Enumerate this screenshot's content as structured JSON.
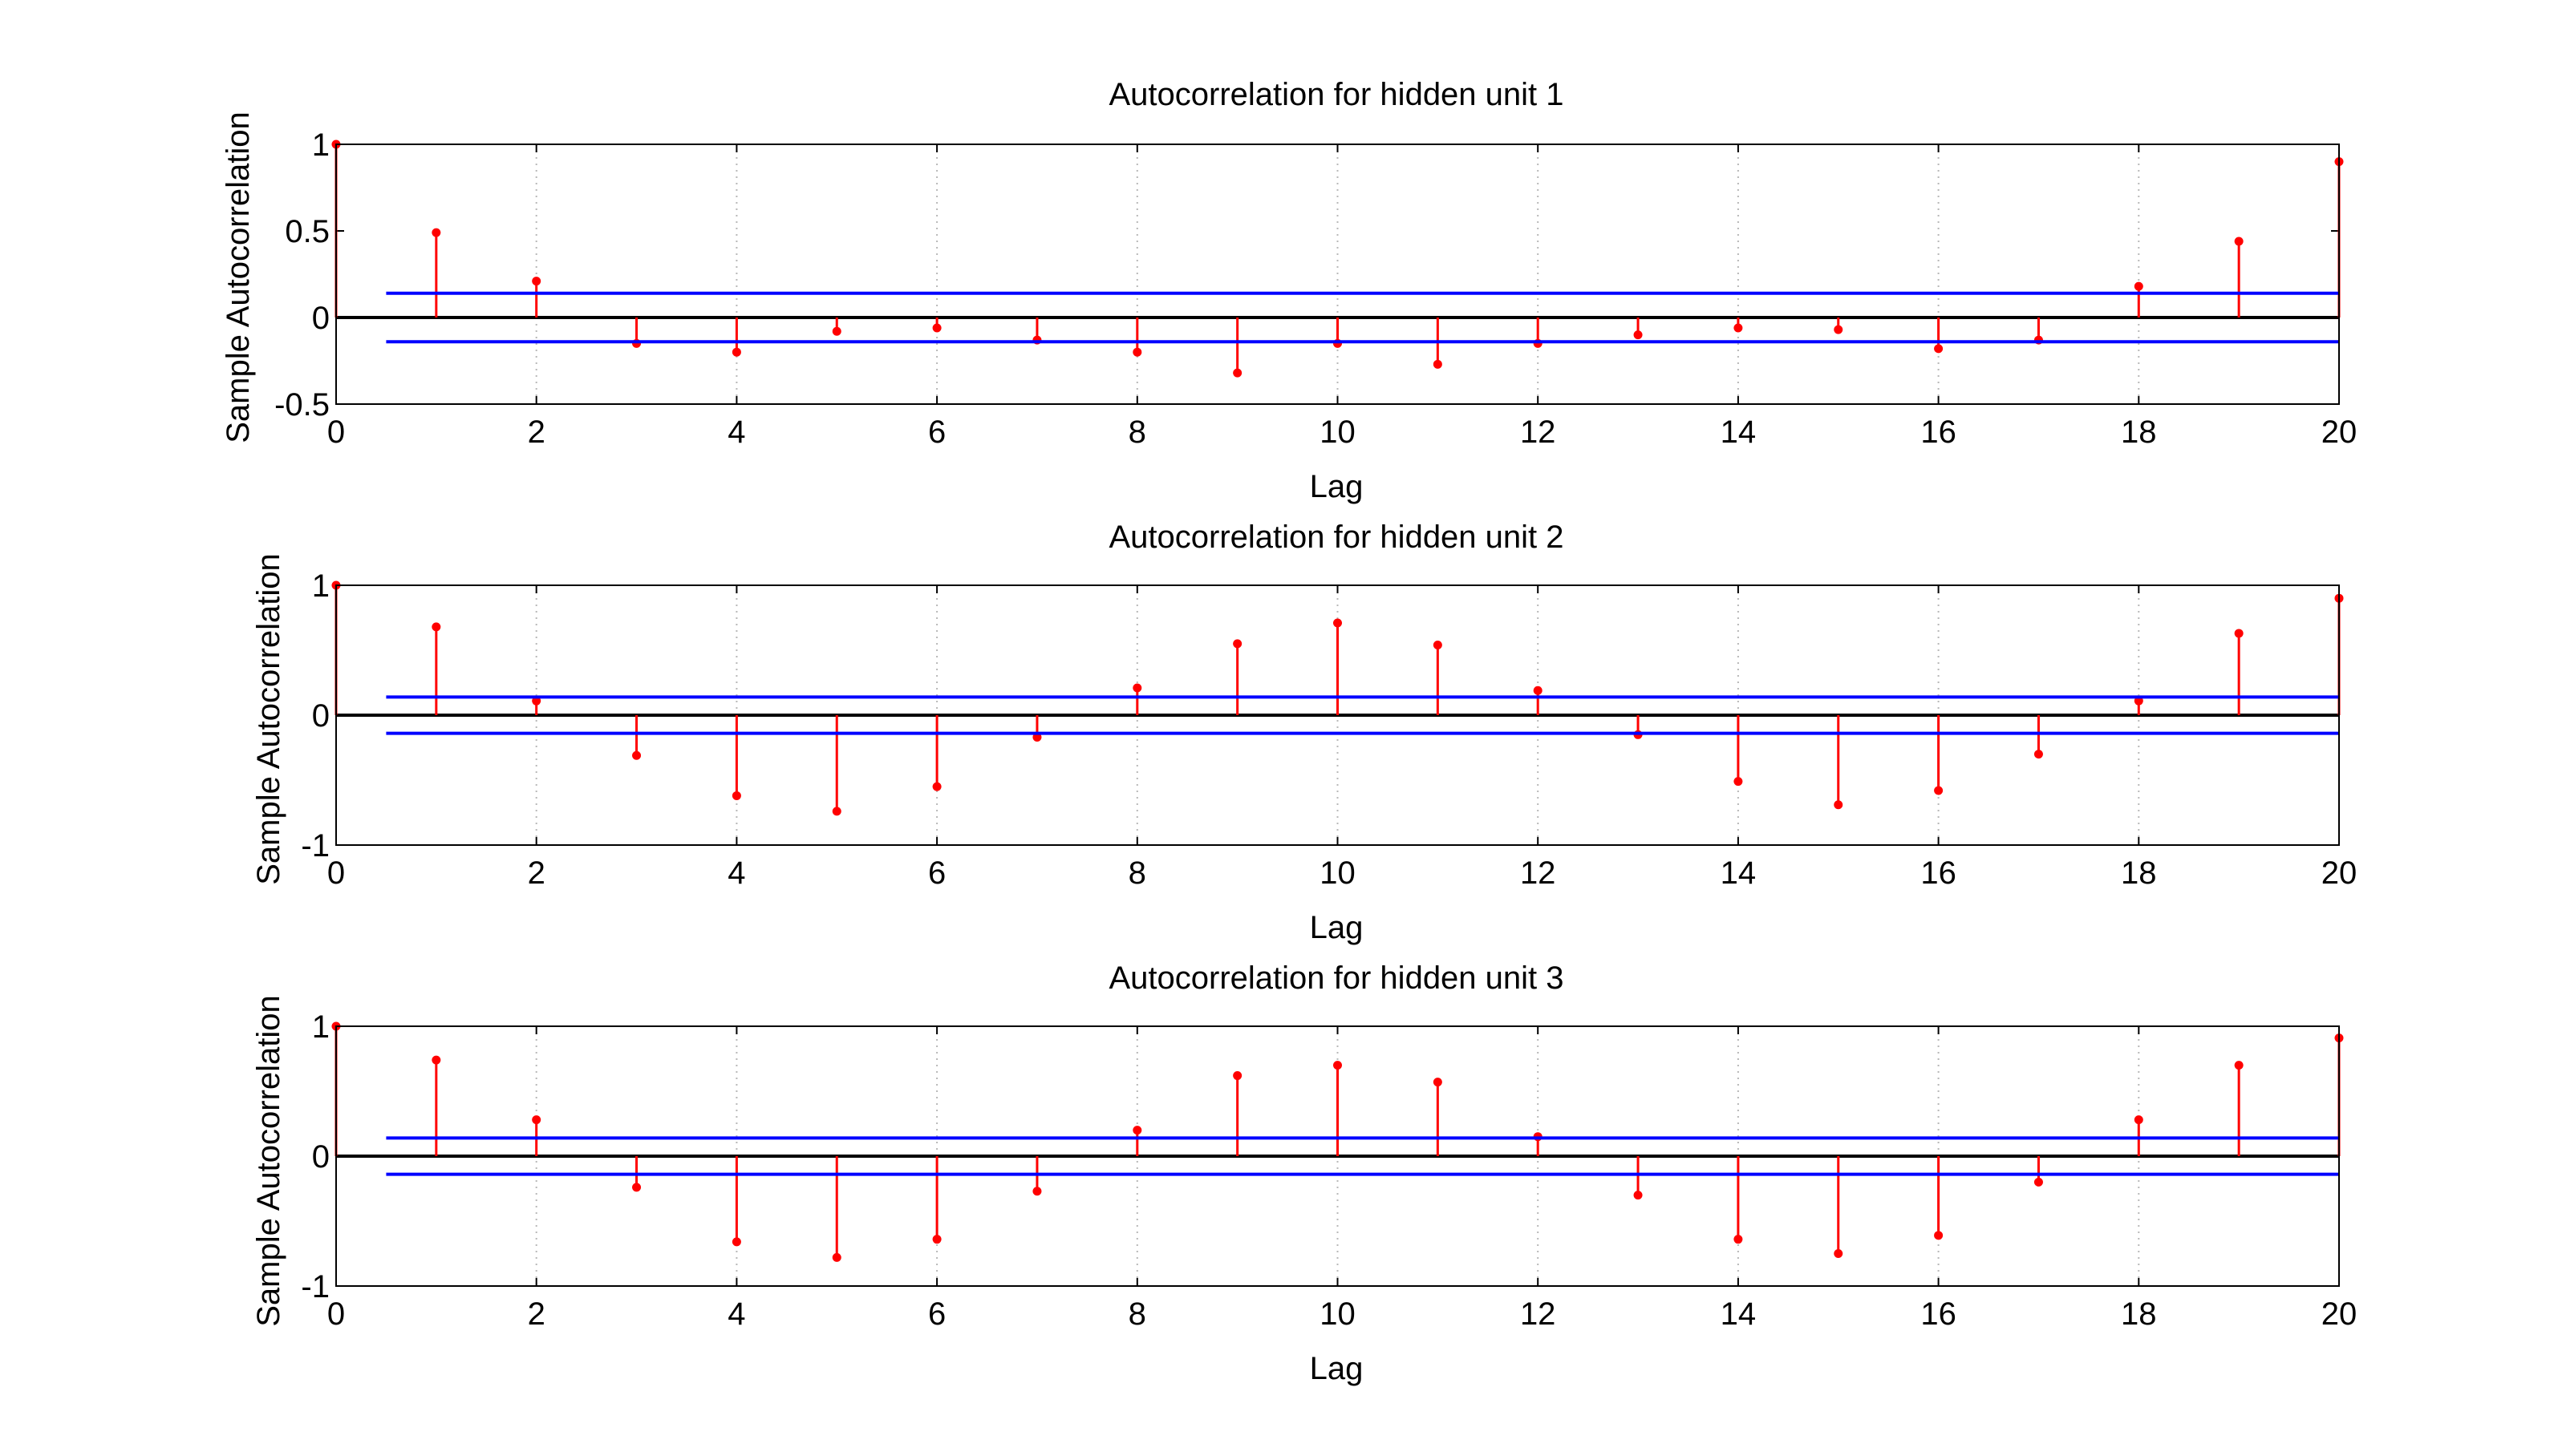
{
  "colors": {
    "stem": "#ff0000",
    "bounds": "#0000ff",
    "zero_line": "#000000",
    "grid": "#b8b8b8",
    "axes": "#000000",
    "background": "#ffffff"
  },
  "chart_data": [
    {
      "type": "stem",
      "title": "Autocorrelation for hidden unit 1",
      "xlabel": "Lag",
      "ylabel": "Sample Autocorrelation",
      "xlim": [
        0,
        20
      ],
      "ylim": [
        -0.5,
        1
      ],
      "xticks": [
        "0",
        "2",
        "4",
        "6",
        "8",
        "10",
        "12",
        "14",
        "16",
        "18",
        "20"
      ],
      "yticks": [
        "-0.5",
        "0",
        "0.5",
        "1"
      ],
      "x": [
        0,
        1,
        2,
        3,
        4,
        5,
        6,
        7,
        8,
        9,
        10,
        11,
        12,
        13,
        14,
        15,
        16,
        17,
        18,
        19,
        20
      ],
      "values": [
        1.0,
        0.49,
        0.21,
        -0.15,
        -0.2,
        -0.08,
        -0.06,
        -0.13,
        -0.2,
        -0.32,
        -0.15,
        -0.27,
        -0.15,
        -0.1,
        -0.06,
        -0.07,
        -0.18,
        -0.13,
        0.18,
        0.44,
        0.9
      ],
      "bounds": [
        0.14,
        -0.14
      ],
      "bounds_x": [
        0.5,
        20
      ],
      "grid": true
    },
    {
      "type": "stem",
      "title": "Autocorrelation for hidden unit 2",
      "xlabel": "Lag",
      "ylabel": "Sample Autocorrelation",
      "xlim": [
        0,
        20
      ],
      "ylim": [
        -1,
        1
      ],
      "xticks": [
        "0",
        "2",
        "4",
        "6",
        "8",
        "10",
        "12",
        "14",
        "16",
        "18",
        "20"
      ],
      "yticks": [
        "-1",
        "0",
        "1"
      ],
      "x": [
        0,
        1,
        2,
        3,
        4,
        5,
        6,
        7,
        8,
        9,
        10,
        11,
        12,
        13,
        14,
        15,
        16,
        17,
        18,
        19,
        20
      ],
      "values": [
        1.0,
        0.68,
        0.11,
        -0.31,
        -0.62,
        -0.74,
        -0.55,
        -0.17,
        0.21,
        0.55,
        0.71,
        0.54,
        0.19,
        -0.15,
        -0.51,
        -0.69,
        -0.58,
        -0.3,
        0.11,
        0.63,
        0.9
      ],
      "bounds": [
        0.14,
        -0.14
      ],
      "bounds_x": [
        0.5,
        20
      ],
      "grid": true
    },
    {
      "type": "stem",
      "title": "Autocorrelation for hidden unit 3",
      "xlabel": "Lag",
      "ylabel": "Sample Autocorrelation",
      "xlim": [
        0,
        20
      ],
      "ylim": [
        -1,
        1
      ],
      "xticks": [
        "0",
        "2",
        "4",
        "6",
        "8",
        "10",
        "12",
        "14",
        "16",
        "18",
        "20"
      ],
      "yticks": [
        "-1",
        "0",
        "1"
      ],
      "x": [
        0,
        1,
        2,
        3,
        4,
        5,
        6,
        7,
        8,
        9,
        10,
        11,
        12,
        13,
        14,
        15,
        16,
        17,
        18,
        19,
        20
      ],
      "values": [
        1.0,
        0.74,
        0.28,
        -0.24,
        -0.66,
        -0.78,
        -0.64,
        -0.27,
        0.2,
        0.62,
        0.7,
        0.57,
        0.15,
        -0.3,
        -0.64,
        -0.75,
        -0.61,
        -0.2,
        0.28,
        0.7,
        0.91
      ],
      "bounds": [
        0.14,
        -0.14
      ],
      "bounds_x": [
        0.5,
        20
      ],
      "grid": true
    }
  ]
}
